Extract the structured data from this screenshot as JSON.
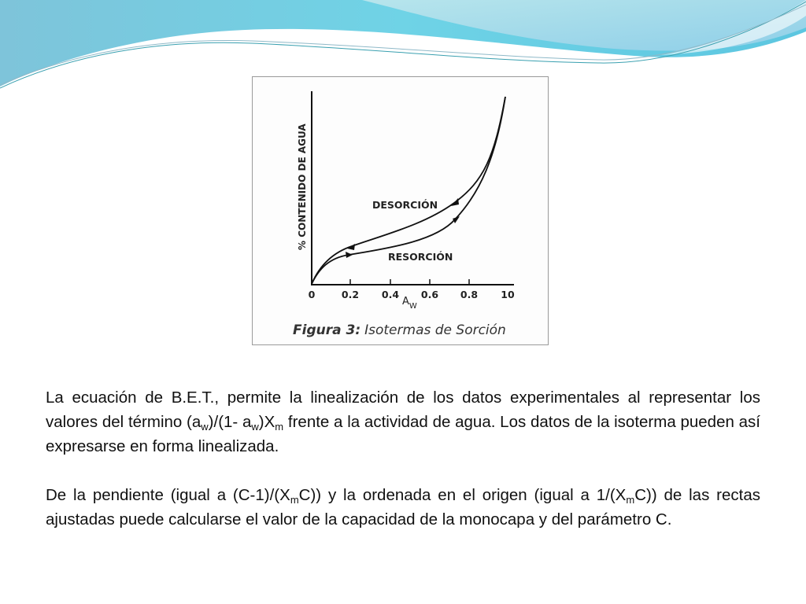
{
  "figure": {
    "ylabel": "% CONTENIDO DE AGUA",
    "xlabel_main": "A",
    "xlabel_sub": "W",
    "xticks": [
      "0",
      "0.2",
      "0.4",
      "0.6",
      "0.8",
      "10"
    ],
    "curve_labels": {
      "upper": "DESORCIÓN",
      "lower": "RESORCIÓN"
    },
    "caption_bold": "Figura 3:",
    "caption_italic": "Isotermas de Sorción"
  },
  "paragraph1": {
    "t1": "La ecuación de B.E.T., permite la linealización de los datos experimentales al representar los valores del término (a",
    "s1": "w",
    "t2": ")/(1- a",
    "s2": "w",
    "t3": ")X",
    "s3": "m",
    "t4": " frente a la actividad de agua. Los datos de la isoterma pueden así expresarse en forma linealizada."
  },
  "paragraph2": {
    "t1": "De la pendiente (igual a (C-1)/(X",
    "s1": "m",
    "t2": "C)) y la ordenada en el origen (igual a 1/(X",
    "s2": "m",
    "t3": "C)) de las rectas ajustadas puede calcularse el valor de la capacidad de la monocapa y del parámetro C."
  }
}
